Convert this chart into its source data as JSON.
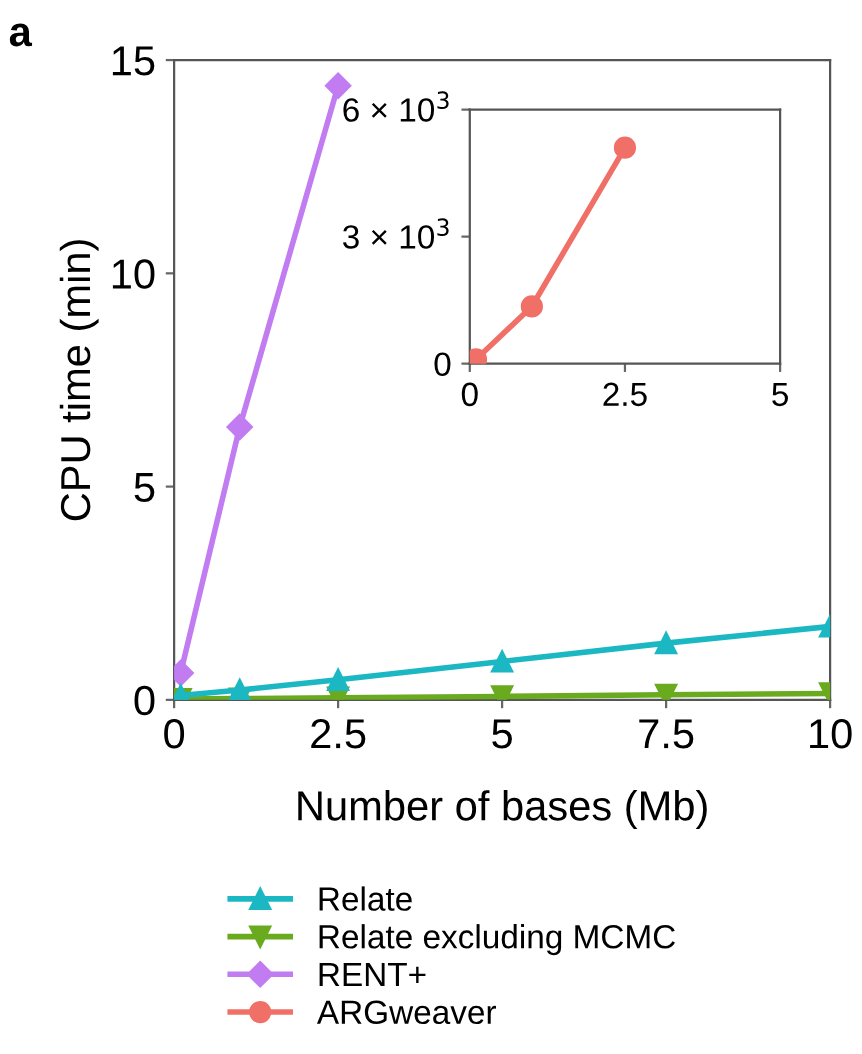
{
  "chart_data": [
    {
      "type": "line",
      "xlabel": "Number of bases (Mb)",
      "ylabel": "CPU time (min)",
      "annotations": [
        "a"
      ],
      "xlim": [
        0,
        10
      ],
      "ylim": [
        0,
        15
      ],
      "xticks": [
        0,
        2.5,
        5,
        7.5,
        10
      ],
      "yticks": [
        0,
        5,
        10,
        15
      ],
      "grid": false,
      "legend": "bottom",
      "series": [
        {
          "name": "Relate",
          "color": "#1bb8c4",
          "marker": "triangle",
          "x": [
            0.1,
            1,
            2.5,
            5,
            7.5,
            10
          ],
          "values": [
            0.1,
            0.23,
            0.47,
            0.9,
            1.33,
            1.72
          ]
        },
        {
          "name": "Relate excluding MCMC",
          "color": "#6aaa1e",
          "marker": "triangle_down",
          "x": [
            0.1,
            1,
            2.5,
            5,
            7.5,
            10
          ],
          "values": [
            0.02,
            0.03,
            0.05,
            0.08,
            0.12,
            0.15
          ]
        },
        {
          "name": "RENT+",
          "color": "#c07cf0",
          "marker": "diamond",
          "x": [
            0.1,
            1,
            2.5
          ],
          "values": [
            0.63,
            6.4,
            14.4
          ]
        }
      ]
    },
    {
      "type": "line",
      "xlim": [
        0,
        5
      ],
      "ylim": [
        0,
        6000
      ],
      "xticks": [
        0,
        2.5,
        5
      ],
      "yticks": [
        0,
        {
          "value": 3000,
          "label": "3 × 10$^{3}$"
        },
        {
          "value": 6000,
          "label": "6 × 10$^{3}$"
        }
      ],
      "grid": false,
      "legend": "bottom",
      "series": [
        {
          "name": "ARGweaver",
          "color": "#f07068",
          "marker": "circle",
          "x": [
            0.1,
            1,
            2.5
          ],
          "values": [
            100,
            1350,
            5100
          ]
        }
      ]
    }
  ]
}
